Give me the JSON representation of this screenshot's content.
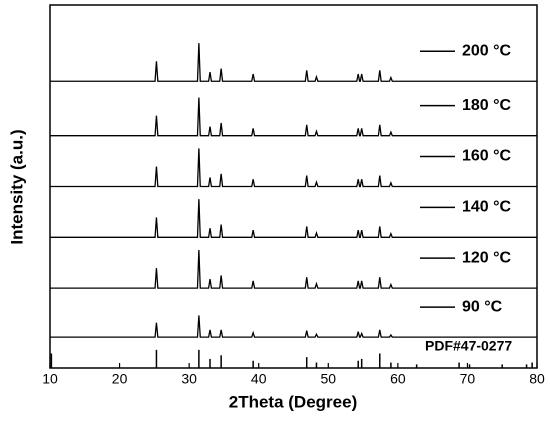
{
  "chart_data": {
    "type": "line",
    "xlabel": "2Theta (Degree)",
    "ylabel": "Intensity (a.u.)",
    "xlim": [
      10,
      80
    ],
    "xticks": [
      10,
      20,
      30,
      40,
      50,
      60,
      70,
      80
    ],
    "ylim": [
      0,
      100
    ],
    "x": [
      10,
      25.1,
      25.3,
      25.5,
      31.2,
      31.4,
      31.6,
      32.8,
      33.0,
      33.2,
      34.4,
      34.6,
      34.8,
      39.0,
      39.2,
      39.4,
      46.7,
      46.9,
      47.1,
      48.1,
      48.3,
      48.5,
      54.1,
      54.3,
      54.5,
      54.6,
      54.8,
      55.0,
      57.2,
      57.4,
      57.6,
      58.8,
      59.0,
      59.2,
      80
    ],
    "series": [
      {
        "name": "200 °C",
        "color": "#000000",
        "values": [
          79,
          79,
          84.5,
          79,
          79,
          89.5,
          79,
          79,
          81.5,
          79,
          79,
          82.5,
          79,
          79,
          81,
          79,
          79,
          82,
          79,
          79,
          80.2,
          79,
          79,
          81,
          79,
          79,
          81,
          79,
          79,
          82,
          79,
          79,
          80,
          79,
          79
        ]
      },
      {
        "name": "180 °C",
        "color": "#000000",
        "values": [
          64,
          64,
          69.5,
          64,
          64,
          74.5,
          64,
          64,
          66.5,
          64,
          64,
          67.5,
          64,
          64,
          66,
          64,
          64,
          67,
          64,
          64,
          65.2,
          64,
          64,
          66,
          64,
          64,
          66,
          64,
          64,
          67,
          64,
          64,
          65,
          64,
          64
        ]
      },
      {
        "name": "160 °C",
        "color": "#000000",
        "values": [
          50,
          50,
          55.5,
          50,
          50,
          60.5,
          50,
          50,
          52.5,
          50,
          50,
          53.5,
          50,
          50,
          52,
          50,
          50,
          53,
          50,
          50,
          51.2,
          50,
          50,
          52,
          50,
          50,
          52,
          50,
          50,
          53,
          50,
          50,
          51,
          50,
          50
        ]
      },
      {
        "name": "140 °C",
        "color": "#000000",
        "values": [
          36,
          36,
          41.5,
          36,
          36,
          46.5,
          36,
          36,
          38.5,
          36,
          36,
          39.5,
          36,
          36,
          38,
          36,
          36,
          39,
          36,
          36,
          37.2,
          36,
          36,
          38,
          36,
          36,
          38,
          36,
          36,
          39,
          36,
          36,
          37,
          36,
          36
        ]
      },
      {
        "name": "120 °C",
        "color": "#000000",
        "values": [
          22,
          22,
          27.5,
          22,
          22,
          32.5,
          22,
          22,
          24.5,
          22,
          22,
          25.5,
          22,
          22,
          24,
          22,
          22,
          25,
          22,
          22,
          23.2,
          22,
          22,
          24,
          22,
          22,
          24,
          22,
          22,
          25,
          22,
          22,
          23,
          22,
          22
        ]
      },
      {
        "name": "90 °C",
        "color": "#000000",
        "values": [
          8.5,
          8.5,
          12.5,
          8.5,
          8.5,
          14.5,
          8.5,
          8.5,
          10.5,
          8.5,
          8.5,
          10.5,
          8.5,
          8.5,
          9.7,
          8.5,
          8.5,
          10.3,
          8.5,
          8.5,
          9.3,
          8.5,
          8.5,
          10,
          8.5,
          8.5,
          9.5,
          8.5,
          8.5,
          10.5,
          8.5,
          8.5,
          9.1,
          8.5,
          8.5
        ]
      }
    ],
    "reference": {
      "name": "PDF#47-0277",
      "color": "#000000",
      "x": [
        10.2,
        25.3,
        31.4,
        33.0,
        34.6,
        39.2,
        46.9,
        48.3,
        54.3,
        54.8,
        57.4,
        59.0,
        62.7,
        68.8,
        70.3,
        75.0,
        78.5,
        79.3
      ],
      "values": [
        4,
        5,
        5,
        2.5,
        3.5,
        2,
        3,
        1.5,
        2,
        2.5,
        4,
        1.5,
        1,
        1.5,
        1,
        1,
        1,
        1.5
      ]
    }
  }
}
